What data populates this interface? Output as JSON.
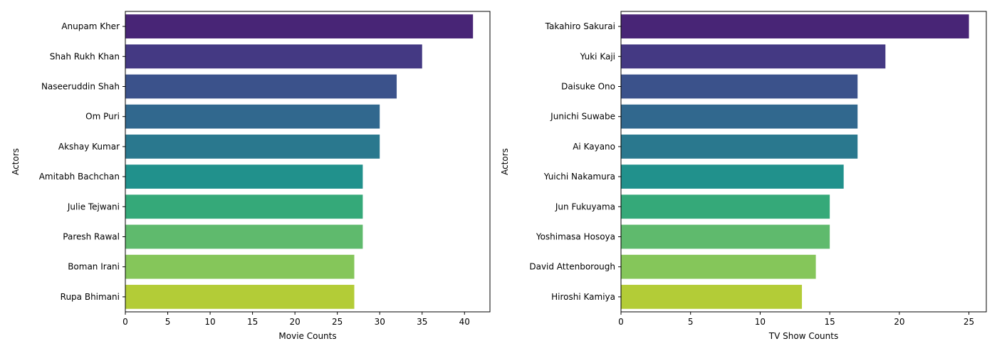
{
  "chart_data": [
    {
      "type": "bar",
      "orientation": "horizontal",
      "categories": [
        "Anupam Kher",
        "Shah Rukh Khan",
        "Naseeruddin Shah",
        "Om Puri",
        "Akshay Kumar",
        "Amitabh Bachchan",
        "Julie Tejwani",
        "Paresh Rawal",
        "Boman Irani",
        "Rupa Bhimani"
      ],
      "values": [
        41,
        35,
        32,
        30,
        30,
        28,
        28,
        28,
        27,
        27
      ],
      "xlabel": "Movie Counts",
      "ylabel": "Actors",
      "xlim": [
        0,
        43
      ],
      "xticks": [
        0,
        5,
        10,
        15,
        20,
        25,
        30,
        35,
        40
      ],
      "grid": false,
      "colors": [
        "#482576",
        "#443983",
        "#3b528b",
        "#31688e",
        "#2a788e",
        "#21918c",
        "#35a979",
        "#5fba6d",
        "#85c65a",
        "#b3cc37"
      ]
    },
    {
      "type": "bar",
      "orientation": "horizontal",
      "categories": [
        "Takahiro Sakurai",
        "Yuki Kaji",
        "Daisuke Ono",
        "Junichi Suwabe",
        "Ai Kayano",
        "Yuichi Nakamura",
        "Jun Fukuyama",
        "Yoshimasa Hosoya",
        "David Attenborough",
        "Hiroshi Kamiya"
      ],
      "values": [
        25,
        19,
        17,
        17,
        17,
        16,
        15,
        15,
        14,
        13
      ],
      "xlabel": "TV Show Counts",
      "ylabel": "Actors",
      "xlim": [
        0,
        26.25
      ],
      "xticks": [
        0,
        5,
        10,
        15,
        20,
        25
      ],
      "grid": false,
      "colors": [
        "#482576",
        "#443983",
        "#3b528b",
        "#31688e",
        "#2a788e",
        "#21918c",
        "#35a979",
        "#5fba6d",
        "#85c65a",
        "#b3cc37"
      ]
    }
  ]
}
